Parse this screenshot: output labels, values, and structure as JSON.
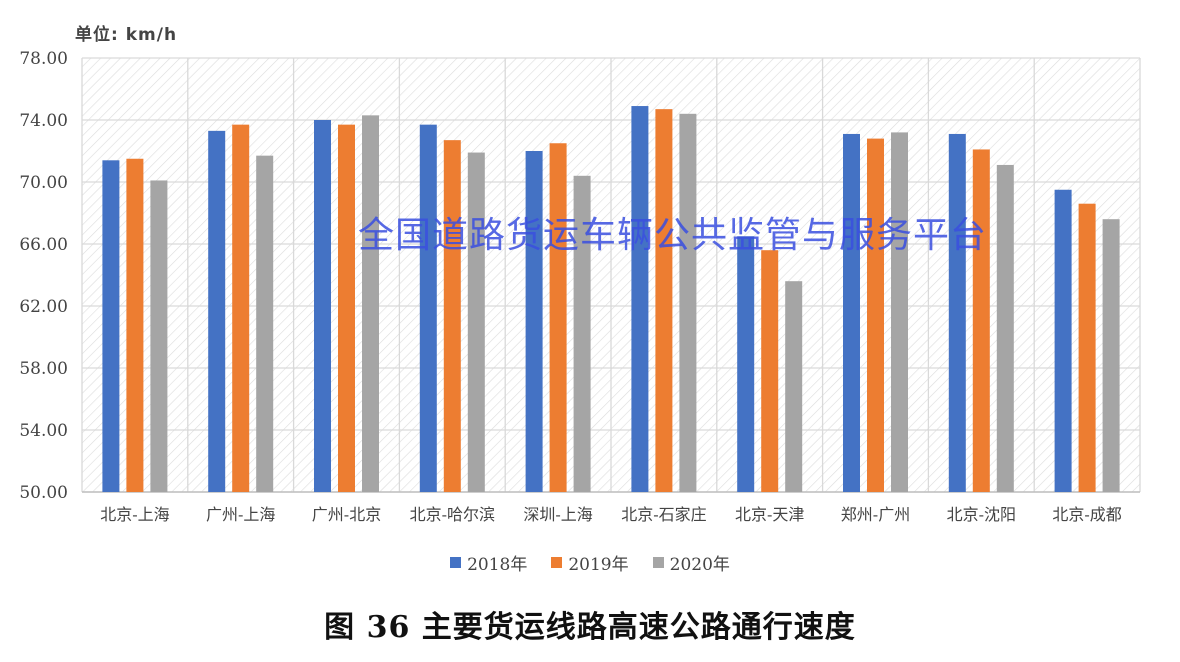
{
  "unit_label": "单位: km/h",
  "watermark": "全国道路货运车辆公共监管与服务平台",
  "caption": "图 36 主要货运线路高速公路通行速度",
  "colors": {
    "2018": "#4472c4",
    "2019": "#ed7d31",
    "2020": "#a5a5a5",
    "grid": "#d9d9d9",
    "hatch": "#e2e2e2"
  },
  "chart_data": {
    "type": "bar",
    "title": "",
    "ylabel": "单位: km/h",
    "xlabel": "",
    "ylim": [
      50,
      78
    ],
    "yticks": [
      "50.00",
      "54.00",
      "58.00",
      "62.00",
      "66.00",
      "70.00",
      "74.00",
      "78.00"
    ],
    "grid": true,
    "legend_position": "bottom",
    "categories": [
      "北京-上海",
      "广州-上海",
      "广州-北京",
      "北京-哈尔滨",
      "深圳-上海",
      "北京-石家庄",
      "北京-天津",
      "郑州-广州",
      "北京-沈阳",
      "北京-成都"
    ],
    "series": [
      {
        "name": "2018年",
        "values": [
          71.4,
          73.3,
          74.0,
          73.7,
          72.0,
          74.9,
          66.5,
          73.1,
          73.1,
          69.5
        ]
      },
      {
        "name": "2019年",
        "values": [
          71.5,
          73.7,
          73.7,
          72.7,
          72.5,
          74.7,
          65.6,
          72.8,
          72.1,
          68.6
        ]
      },
      {
        "name": "2020年",
        "values": [
          70.1,
          71.7,
          74.3,
          71.9,
          70.4,
          74.4,
          63.6,
          73.2,
          71.1,
          67.6
        ]
      }
    ]
  }
}
